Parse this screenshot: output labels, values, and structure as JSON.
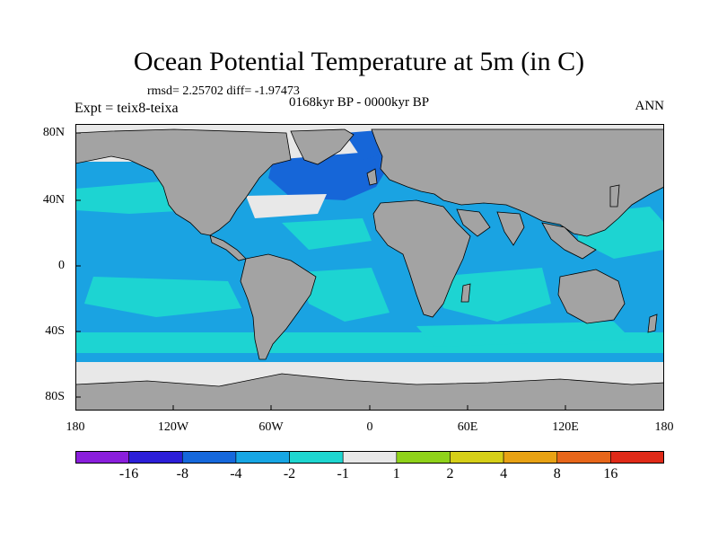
{
  "title": "Ocean Potential Temperature at 5m (in C)",
  "stats": "rmsd= 2.25702 diff= -1.97473",
  "period": "0168kyr BP - 0000kyr BP",
  "experiment": "Expt = teix8-teixa",
  "season": "ANN",
  "lat_labels": [
    "80N",
    "40N",
    "0",
    "40S",
    "80S"
  ],
  "lon_labels": [
    "180",
    "120W",
    "60W",
    "0",
    "60E",
    "120E",
    "180"
  ],
  "colorbar": {
    "labels": [
      "-16",
      "-8",
      "-4",
      "-2",
      "-1",
      "1",
      "2",
      "4",
      "8",
      "16"
    ],
    "colors": [
      "#8a1fdc",
      "#2c1fd8",
      "#1568dc",
      "#17a6e4",
      "#1ed6d0",
      "#e8e8e8",
      "#8fd21a",
      "#d6cf18",
      "#e8a214",
      "#e7661a",
      "#e02a18"
    ]
  },
  "colors": {
    "land": "#a3a3a3",
    "ocean_main": "#1aa3e2",
    "ocean_warm": "#1dd4d2",
    "ocean_cold": "#1666d8",
    "sea_ice": "#e8e8e8"
  }
}
